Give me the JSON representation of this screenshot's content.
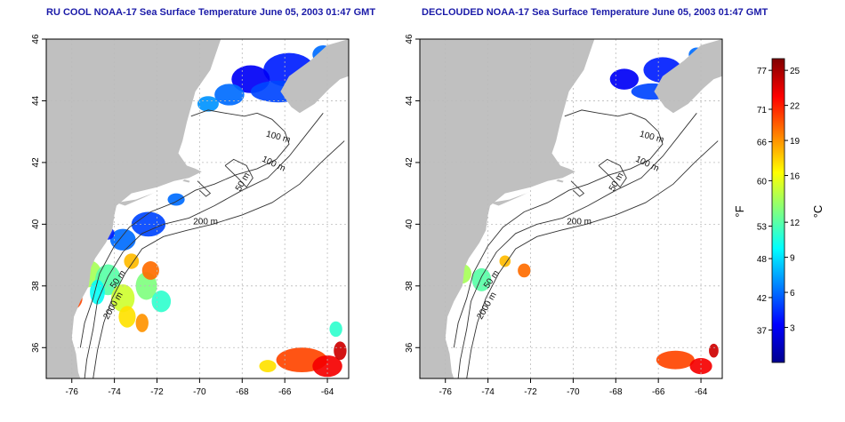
{
  "maps": [
    {
      "id": "left",
      "title": "RU COOL NOAA-17 Sea Surface Temperature June 05, 2003 01:47 GMT",
      "contour_labels": [
        "100 m",
        "100 m",
        "50 m",
        "200 m",
        "50 m",
        "2000 m"
      ],
      "x_ticks": [
        -76,
        -74,
        -72,
        -70,
        -68,
        -66,
        -64
      ],
      "y_ticks": [
        36,
        38,
        40,
        42,
        44,
        46
      ],
      "lon_range": [
        -77.2,
        -63
      ],
      "lat_range": [
        35,
        46
      ]
    },
    {
      "id": "right",
      "title": "DECLOUDED NOAA-17 Sea Surface Temperature June 05, 2003 01:47 GMT",
      "contour_labels": [
        "100 m",
        "100 m",
        "50 m",
        "200 m",
        "50 m",
        "2000 m"
      ],
      "x_ticks": [
        -76,
        -74,
        -72,
        -70,
        -68,
        -66,
        -64
      ],
      "y_ticks": [
        36,
        38,
        40,
        42,
        44,
        46
      ],
      "lon_range": [
        -77.2,
        -63
      ],
      "lat_range": [
        35,
        46
      ]
    }
  ],
  "colorbar": {
    "fahrenheit_label": "°F",
    "celsius_label": "°C",
    "fahrenheit_ticks": [
      37,
      42,
      48,
      53,
      60,
      66,
      71,
      77
    ],
    "celsius_ticks": [
      3,
      6,
      9,
      12,
      16,
      19,
      22,
      25
    ],
    "celsius_range": [
      0,
      26
    ],
    "colors": [
      "#00008f",
      "#0000ff",
      "#0080ff",
      "#00ffff",
      "#80ff80",
      "#ffff00",
      "#ff8000",
      "#ff0000",
      "#800000"
    ]
  }
}
